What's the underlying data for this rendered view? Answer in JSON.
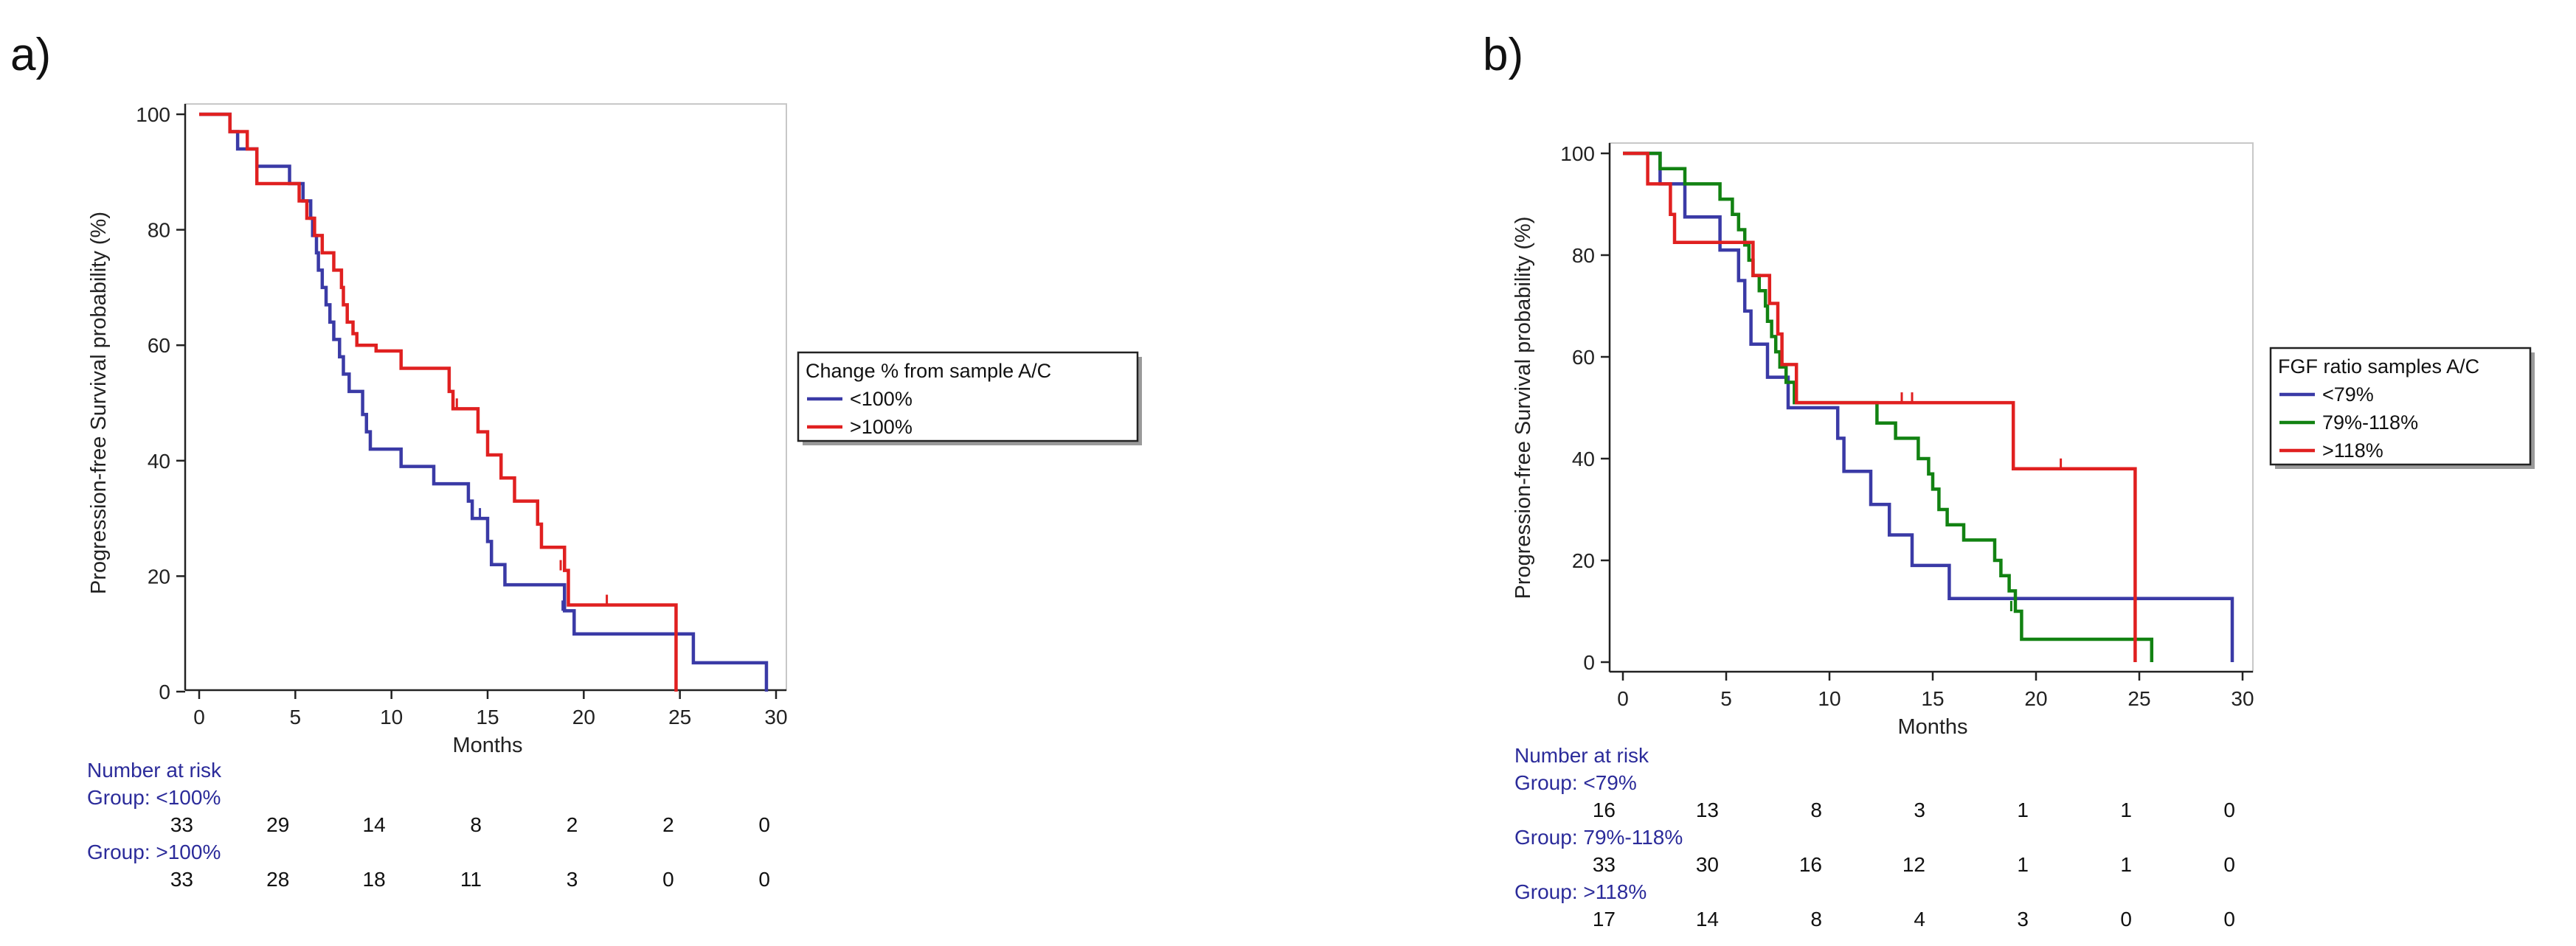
{
  "chart_data": [
    {
      "panel_label": "a)",
      "type": "line",
      "subtype": "kaplan-meier",
      "title": "",
      "xlabel": "Months",
      "ylabel": "Progression-free Survival probability (%)",
      "xlim": [
        0,
        30
      ],
      "ylim": [
        0,
        100
      ],
      "xticks": [
        0,
        5,
        10,
        15,
        20,
        25,
        30
      ],
      "yticks": [
        0,
        20,
        40,
        60,
        80,
        100
      ],
      "grid": false,
      "legend_position": "right",
      "legend_title": "Change % from sample A/C",
      "series": [
        {
          "name": "<100%",
          "color": "#3a3aa6",
          "steps": [
            [
              0,
              100
            ],
            [
              1.6,
              97
            ],
            [
              2,
              94
            ],
            [
              3,
              91
            ],
            [
              4.7,
              88
            ],
            [
              5.4,
              85
            ],
            [
              5.8,
              82
            ],
            [
              5.9,
              79
            ],
            [
              6.1,
              76
            ],
            [
              6.2,
              73
            ],
            [
              6.4,
              70
            ],
            [
              6.6,
              67
            ],
            [
              6.8,
              64
            ],
            [
              7,
              61
            ],
            [
              7.3,
              58
            ],
            [
              7.5,
              55
            ],
            [
              7.8,
              52
            ],
            [
              8.5,
              48
            ],
            [
              8.7,
              45
            ],
            [
              8.9,
              42
            ],
            [
              10.5,
              39
            ],
            [
              12.2,
              36
            ],
            [
              14,
              33
            ],
            [
              14.2,
              30
            ],
            [
              15,
              26
            ],
            [
              15.2,
              22
            ],
            [
              15.9,
              18.5
            ],
            [
              19,
              14
            ],
            [
              19.5,
              10
            ],
            [
              24.8,
              10
            ],
            [
              25.7,
              5
            ],
            [
              29.5,
              0
            ]
          ],
          "censor": [
            [
              6.0,
              79
            ],
            [
              14.6,
              30
            ],
            [
              18.9,
              14
            ]
          ]
        },
        {
          "name": ">100%",
          "color": "#e02020",
          "steps": [
            [
              0,
              100
            ],
            [
              1.6,
              97
            ],
            [
              2.5,
              94
            ],
            [
              3,
              88
            ],
            [
              5.2,
              85
            ],
            [
              5.6,
              82
            ],
            [
              6,
              79
            ],
            [
              6.4,
              76
            ],
            [
              7,
              73
            ],
            [
              7.4,
              70
            ],
            [
              7.5,
              67
            ],
            [
              7.7,
              64
            ],
            [
              8,
              62
            ],
            [
              8.2,
              60
            ],
            [
              9.2,
              59
            ],
            [
              10.5,
              56
            ],
            [
              13,
              52
            ],
            [
              13.2,
              49
            ],
            [
              14.5,
              45
            ],
            [
              15,
              41
            ],
            [
              15.7,
              37
            ],
            [
              16.4,
              33
            ],
            [
              17.6,
              29
            ],
            [
              17.8,
              25
            ],
            [
              19,
              21
            ],
            [
              19.2,
              15
            ],
            [
              24.8,
              0
            ]
          ],
          "censor": [
            [
              13.4,
              49
            ],
            [
              18.8,
              21
            ],
            [
              21.2,
              15
            ]
          ]
        }
      ],
      "risk_table": {
        "title": "Number at risk",
        "times": [
          0,
          5,
          10,
          15,
          20,
          25,
          30
        ],
        "groups": [
          {
            "label": "Group: <100%",
            "counts": [
              "33",
              "29",
              "14",
              "8",
              "2",
              "2",
              "0"
            ]
          },
          {
            "label": "Group: >100%",
            "counts": [
              "33",
              "28",
              "18",
              "11",
              "3",
              "0",
              "0"
            ]
          }
        ]
      }
    },
    {
      "panel_label": "b)",
      "type": "line",
      "subtype": "kaplan-meier",
      "title": "",
      "xlabel": "Months",
      "ylabel": "Progression-free Survival probability (%)",
      "xlim": [
        0,
        30
      ],
      "ylim": [
        0,
        100
      ],
      "xticks": [
        0,
        5,
        10,
        15,
        20,
        25,
        30
      ],
      "yticks": [
        0,
        20,
        40,
        60,
        80,
        100
      ],
      "grid": false,
      "legend_position": "right",
      "legend_title": "FGF ratio samples A/C",
      "series": [
        {
          "name": "<79%",
          "color": "#3a3aa6",
          "steps": [
            [
              0,
              100
            ],
            [
              1.8,
              94
            ],
            [
              3,
              87.5
            ],
            [
              4.7,
              81
            ],
            [
              5.6,
              75
            ],
            [
              5.9,
              69
            ],
            [
              6.2,
              62.5
            ],
            [
              7,
              56
            ],
            [
              8,
              50
            ],
            [
              10.4,
              44
            ],
            [
              10.7,
              37.5
            ],
            [
              12,
              31
            ],
            [
              12.9,
              25
            ],
            [
              14,
              19
            ],
            [
              15.8,
              12.5
            ],
            [
              29.5,
              0
            ]
          ],
          "censor": []
        },
        {
          "name": "79%-118%",
          "color": "#128212",
          "steps": [
            [
              0,
              100
            ],
            [
              1.8,
              97
            ],
            [
              3,
              94
            ],
            [
              4.7,
              91
            ],
            [
              5.3,
              88
            ],
            [
              5.6,
              85
            ],
            [
              5.9,
              82
            ],
            [
              6.1,
              79
            ],
            [
              6.3,
              76
            ],
            [
              6.6,
              73
            ],
            [
              6.9,
              70
            ],
            [
              7,
              67
            ],
            [
              7.2,
              64
            ],
            [
              7.4,
              61
            ],
            [
              7.6,
              58
            ],
            [
              7.9,
              55
            ],
            [
              8.3,
              51
            ],
            [
              12.3,
              47
            ],
            [
              13.2,
              44
            ],
            [
              14.3,
              40
            ],
            [
              14.8,
              37
            ],
            [
              15,
              34
            ],
            [
              15.3,
              30
            ],
            [
              15.7,
              27
            ],
            [
              16.5,
              24
            ],
            [
              18,
              20
            ],
            [
              18.3,
              17
            ],
            [
              18.7,
              14
            ],
            [
              19,
              10
            ],
            [
              19.3,
              4.5
            ],
            [
              25.6,
              0
            ]
          ],
          "censor": [
            [
              18.8,
              10
            ]
          ]
        },
        {
          "name": ">118%",
          "color": "#e02020",
          "steps": [
            [
              0,
              100
            ],
            [
              1.2,
              94
            ],
            [
              2.3,
              88
            ],
            [
              2.5,
              82.5
            ],
            [
              5.2,
              82.5
            ],
            [
              6.3,
              76
            ],
            [
              7.1,
              70.5
            ],
            [
              7.5,
              64.5
            ],
            [
              7.7,
              58.5
            ],
            [
              8.4,
              51
            ],
            [
              18.9,
              38
            ],
            [
              24.8,
              0
            ]
          ],
          "censor": [
            [
              13.5,
              51
            ],
            [
              14,
              51
            ],
            [
              21.2,
              38
            ]
          ]
        }
      ],
      "risk_table": {
        "title": "Number at risk",
        "times": [
          0,
          5,
          10,
          15,
          20,
          25,
          30
        ],
        "groups": [
          {
            "label": "Group: <79%",
            "counts": [
              "16",
              "13",
              "8",
              "3",
              "1",
              "1",
              "0"
            ]
          },
          {
            "label": "Group: 79%-118%",
            "counts": [
              "33",
              "30",
              "16",
              "12",
              "1",
              "1",
              "0"
            ]
          },
          {
            "label": "Group: >118%",
            "counts": [
              "17",
              "14",
              "8",
              "4",
              "3",
              "0",
              "0"
            ]
          }
        ]
      }
    }
  ]
}
